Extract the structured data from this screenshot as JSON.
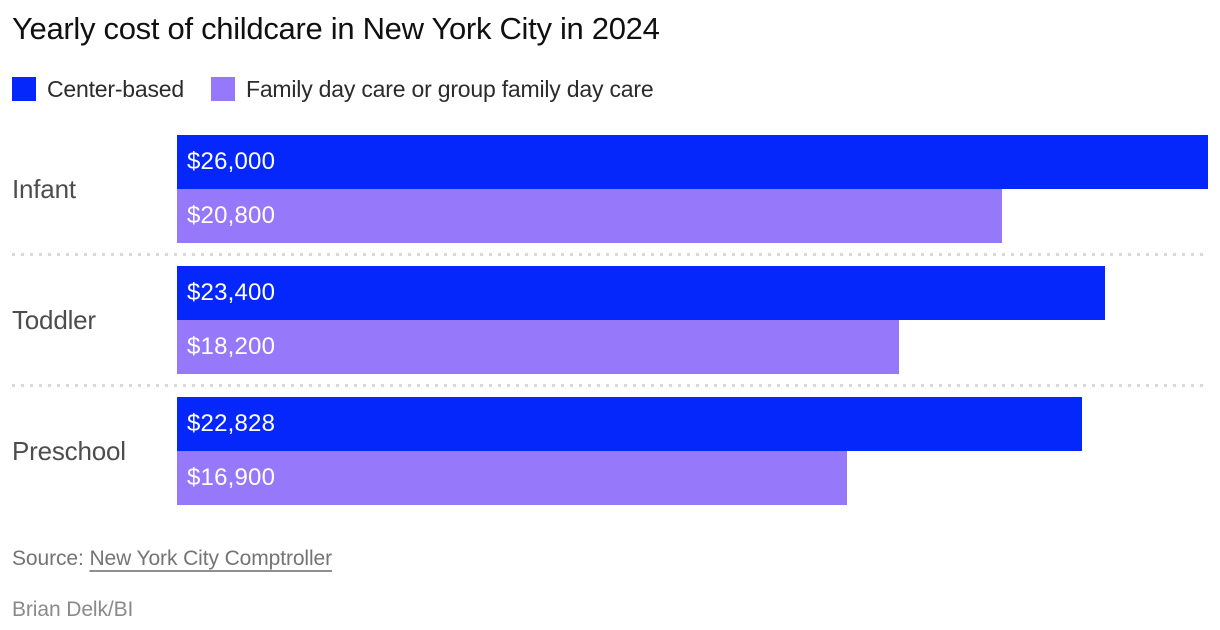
{
  "title": "Yearly cost of childcare in New York City in 2024",
  "legend": {
    "items": [
      {
        "label": "Center-based",
        "color": "#0527fc"
      },
      {
        "label": "Family day care or group family day care",
        "color": "#9678fb"
      }
    ]
  },
  "chart_data": {
    "type": "bar",
    "orientation": "horizontal",
    "title": "Yearly cost of childcare in New York City in 2024",
    "categories": [
      "Infant",
      "Toddler",
      "Preschool"
    ],
    "series": [
      {
        "name": "Center-based",
        "color": "#0527fc",
        "values": [
          26000,
          23400,
          22828
        ],
        "value_labels": [
          "$26,000",
          "$23,400",
          "$22,828"
        ]
      },
      {
        "name": "Family day care or group family day care",
        "color": "#9678fb",
        "values": [
          20800,
          18200,
          16900
        ],
        "value_labels": [
          "$20,800",
          "$18,200",
          "$16,900"
        ]
      }
    ],
    "x_axis": {
      "min": 0,
      "max": 26000,
      "visible": false
    },
    "grid": false,
    "legend_position": "top",
    "value_prefix": "$",
    "value_label_position": "inside-start",
    "value_label_color": "#ffffff"
  },
  "footer": {
    "source_prefix": "Source:",
    "source_link_text": "New York City Comptroller",
    "credit": "Brian Delk/BI"
  },
  "style_colors": {
    "separator": "#d9d9d9",
    "category_label": "#4d4d4d",
    "title_text": "#101010"
  }
}
